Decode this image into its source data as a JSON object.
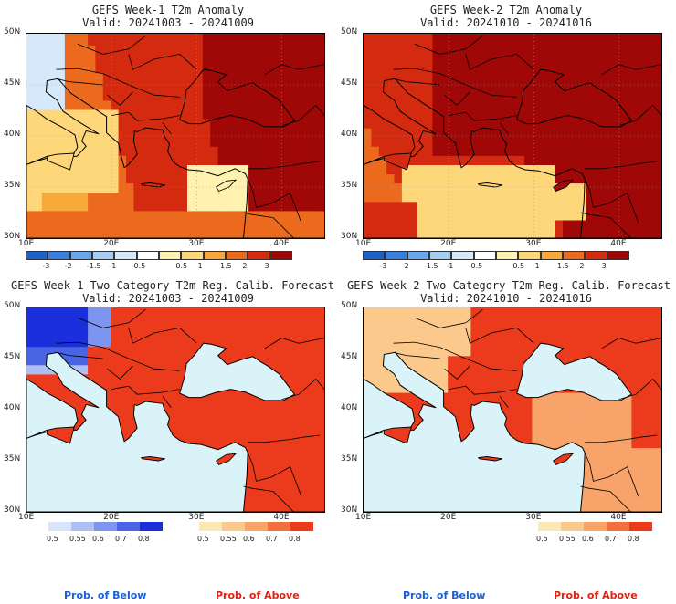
{
  "panels": [
    {
      "title1": "GEFS Week-1 T2m Anomaly",
      "title2": "Valid: 20241003 - 20241009",
      "kind": "anom",
      "week": 1
    },
    {
      "title1": "GEFS Week-2 T2m Anomaly",
      "title2": "Valid: 20241010 - 20241016",
      "kind": "anom",
      "week": 2
    },
    {
      "title1": "GEFS Week-1 Two-Category T2m Reg. Calib. Forecast",
      "title2": "Valid: 20241003 - 20241009",
      "kind": "prob",
      "week": 1
    },
    {
      "title1": "GEFS Week-2 Two-Category T2m Reg. Calib. Forecast",
      "title2": "Valid: 20241010 - 20241016",
      "kind": "prob",
      "week": 2
    }
  ],
  "axes": {
    "lat_labels": [
      "50N",
      "45N",
      "40N",
      "35N",
      "30N"
    ],
    "lon_labels": [
      "10E",
      "20E",
      "30E",
      "40E"
    ]
  },
  "anom_colorbar": {
    "labels": [
      "-3",
      "-2",
      "-1.5",
      "-1",
      "-0.5",
      "0.5",
      "1",
      "1.5",
      "2",
      "3"
    ],
    "colors": [
      "#1e5fc8",
      "#3a7fdc",
      "#6aa6ea",
      "#a6cdf2",
      "#d6e9fa",
      "#ffffff",
      "#fff2b0",
      "#fdd77a",
      "#f7a93c",
      "#ec6a1e",
      "#d42a10",
      "#a00808"
    ]
  },
  "prob_below": {
    "labels": [
      "0.5",
      "0.55",
      "0.6",
      "0.7",
      "0.8"
    ],
    "colors": [
      "#d9e3fb",
      "#aebff5",
      "#7d95ee",
      "#4a64e6",
      "#1a2fdb"
    ],
    "caption": "Prob. of Below",
    "caption_color": "#1a5fd6"
  },
  "prob_above": {
    "labels": [
      "0.5",
      "0.55",
      "0.6",
      "0.7",
      "0.8"
    ],
    "colors": [
      "#fde8b4",
      "#fcc98c",
      "#f7a36a",
      "#f2703e",
      "#ec3b1c"
    ],
    "caption": "Prob. of Above",
    "caption_color": "#e02010"
  }
}
